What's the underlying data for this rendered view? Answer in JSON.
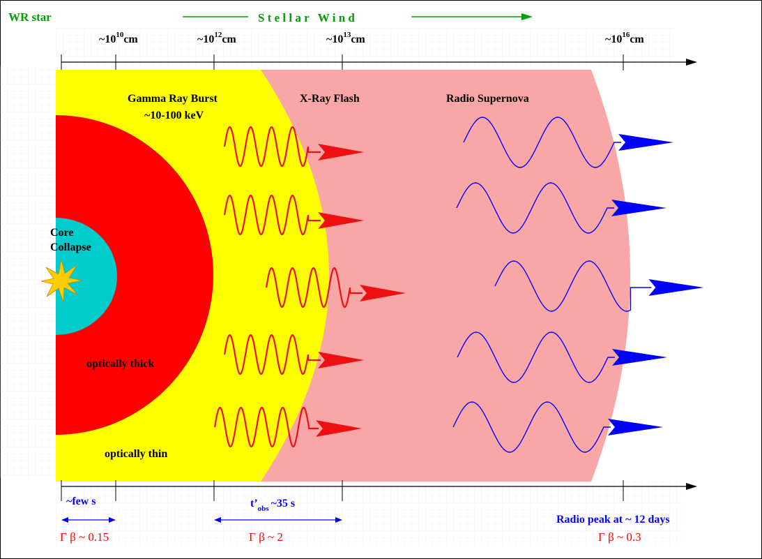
{
  "header": {
    "wr_star": "WR star",
    "stellar_wind": "S t e l l a r   W i n d"
  },
  "scale": {
    "r1": {
      "prefix": "~10",
      "exp": "10",
      "unit": "cm"
    },
    "r2": {
      "prefix": "~10",
      "exp": "12",
      "unit": "cm"
    },
    "r3": {
      "prefix": "~10",
      "exp": "13",
      "unit": "cm"
    },
    "r4": {
      "prefix": "~10",
      "exp": "16",
      "unit": "cm"
    }
  },
  "regions": {
    "core_line1": "Core",
    "core_line2": "Collapse",
    "optically_thick": "optically thick",
    "optically_thin": "optically thin",
    "grb_line1": "Gamma Ray Burst",
    "grb_line2": "~10-100 keV",
    "xray_flash": "X-Ray Flash",
    "radio_supernova": "Radio Supernova"
  },
  "bottom": {
    "few_s": "~few s",
    "tobs_prefix": "t’",
    "tobs_sub": "obs",
    "tobs_suffix": "~35 s",
    "radio_peak": "Radio peak at ~ 12 days",
    "gb1": "Γ β ~ 0.15",
    "gb2": "Γ β ~ 2",
    "gb3": "Γ β ~ 0.3"
  },
  "colors": {
    "yellow_zone": "#ffff00",
    "red_core": "#ff0000",
    "cyan_core": "#00cccc",
    "pink_zone": "#f9a6a6",
    "green_text": "#00a000",
    "blue": "#0000ff",
    "red_wave": "#ee1010",
    "star": "#ffcc00"
  }
}
